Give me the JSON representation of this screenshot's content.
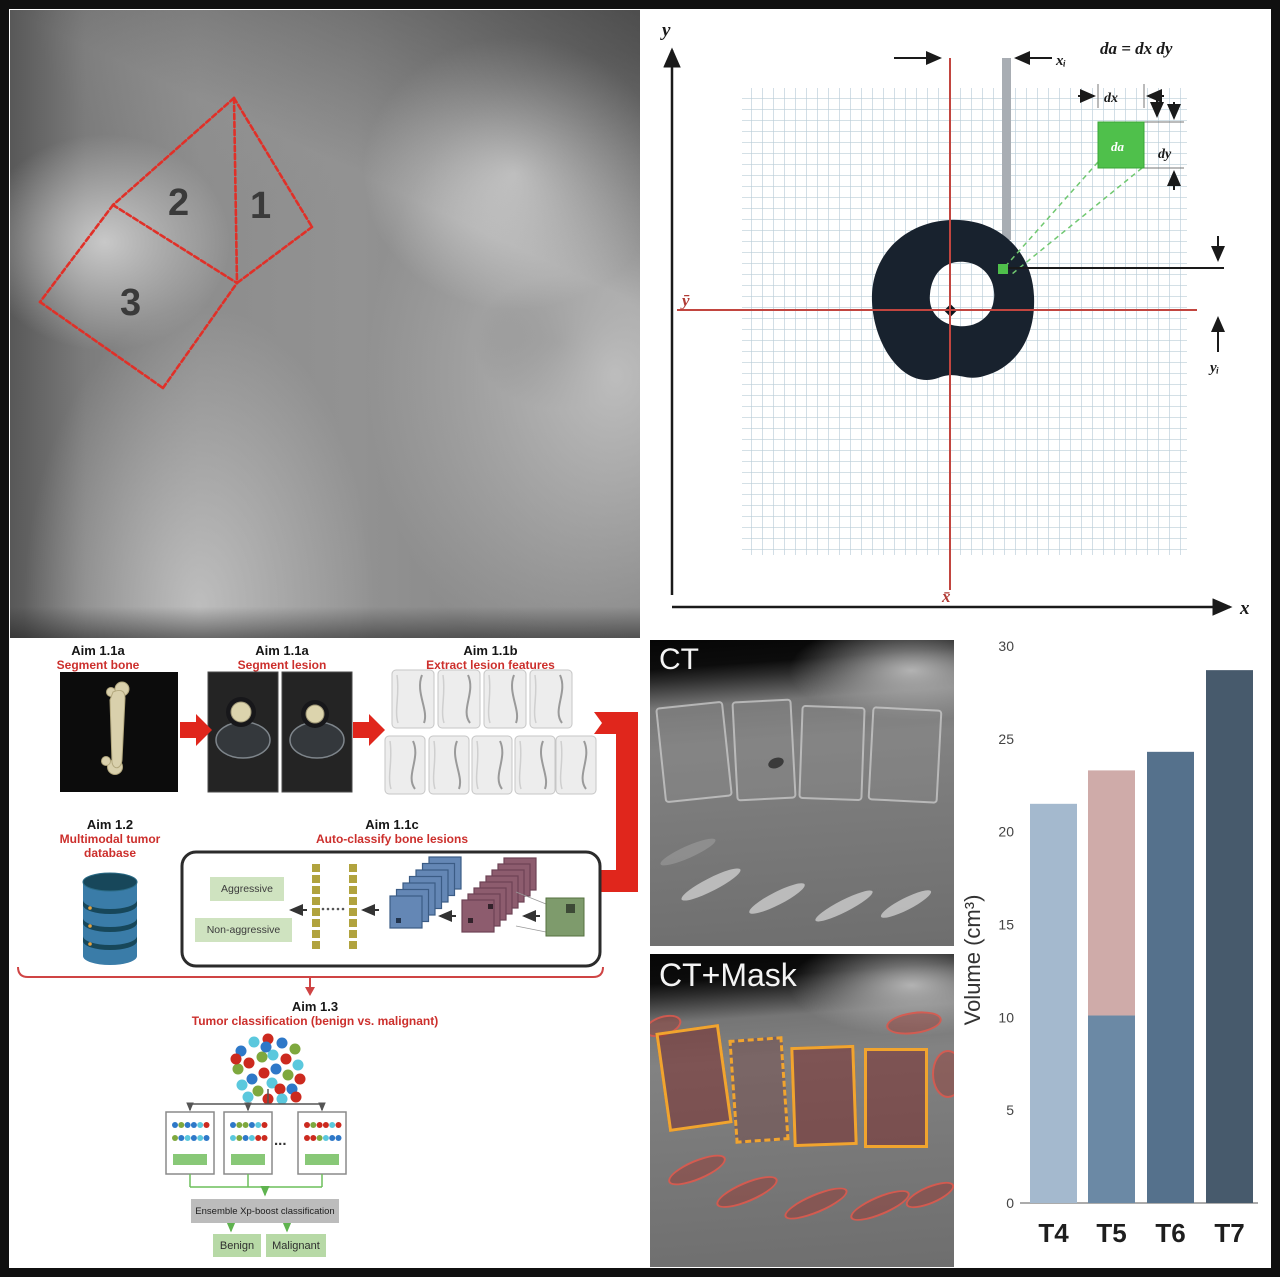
{
  "figure": {
    "xray": {
      "labels": [
        "1",
        "2",
        "3"
      ]
    },
    "geometry": {
      "y_axis": "y",
      "x_axis": "x",
      "x_bar": "x̄",
      "y_bar": "ȳ",
      "x_i": "xᵢ",
      "y_i": "yᵢ",
      "area_equation": "da = dx dy",
      "dx_label": "dx",
      "dy_label": "dy",
      "da_label": "da"
    },
    "flowchart": {
      "aim_bone": {
        "title": "Aim 1.1a",
        "subtitle": "Segment bone"
      },
      "aim_lesion": {
        "title": "Aim 1.1a",
        "subtitle": "Segment lesion"
      },
      "aim_features": {
        "title": "Aim 1.1b",
        "subtitle": "Extract lesion features"
      },
      "aim_database": {
        "title": "Aim 1.2",
        "subtitle": "Multimodal tumor database"
      },
      "aim_classify": {
        "title": "Aim 1.1c",
        "subtitle": "Auto-classify bone lesions"
      },
      "aim_tumor": {
        "title": "Aim 1.3",
        "subtitle": "Tumor classification (benign vs. malignant)"
      },
      "class_labels": {
        "aggressive": "Aggressive",
        "non_aggressive": "Non-aggressive"
      },
      "ellipsis": "...",
      "ensemble": "Ensemble Xp-boost classification",
      "outputs": {
        "benign": "Benign",
        "malignant": "Malignant"
      },
      "accent_red": "#e0261c",
      "accent_green": "#6cbf5a"
    },
    "ct": {
      "label": "CT"
    },
    "ct_mask": {
      "label": "CT+Mask"
    }
  },
  "chart_data": {
    "type": "bar",
    "title": "",
    "xlabel": "",
    "ylabel": "Volume (cm³)",
    "ylim": [
      0,
      30
    ],
    "yticks": [
      0,
      5,
      10,
      15,
      20,
      25,
      30
    ],
    "grid": false,
    "legend_position": "none",
    "categories": [
      "T4",
      "T5",
      "T6",
      "T7"
    ],
    "bars": [
      {
        "category": "T4",
        "segments": [
          {
            "value": 21.5,
            "color": "#a4b9ce"
          }
        ],
        "total": 21.5
      },
      {
        "category": "T5",
        "segments": [
          {
            "value": 10.1,
            "color": "#6b89a5"
          },
          {
            "value": 13.2,
            "color": "#cfaba9"
          }
        ],
        "total": 23.3
      },
      {
        "category": "T6",
        "segments": [
          {
            "value": 24.3,
            "color": "#55718c"
          }
        ],
        "total": 24.3
      },
      {
        "category": "T7",
        "segments": [
          {
            "value": 28.7,
            "color": "#475a6c"
          }
        ],
        "total": 28.7
      }
    ]
  }
}
